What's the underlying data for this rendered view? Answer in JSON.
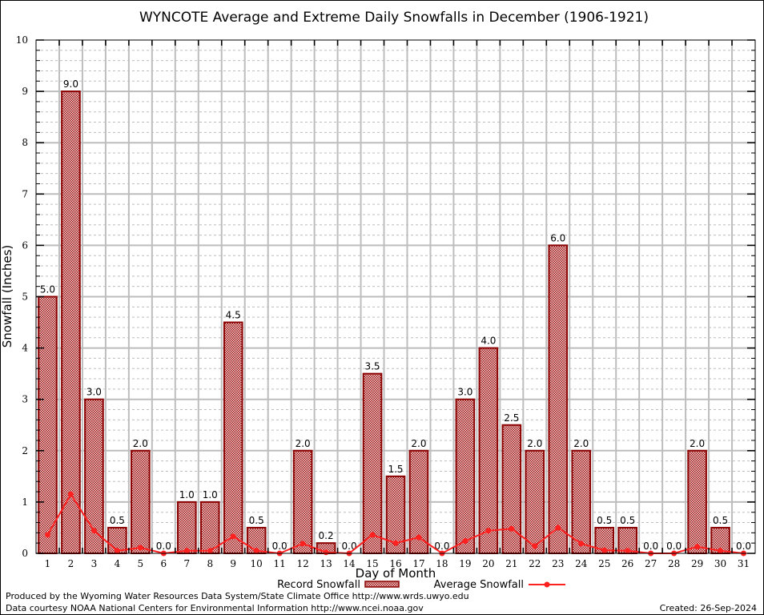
{
  "chart_data": {
    "type": "bar",
    "title": "WYNCOTE Average and Extreme Daily Snowfalls in December (1906-1921)",
    "xlabel": "Day of Month",
    "ylabel": "Snowfall (Inches)",
    "ylim": [
      0,
      10
    ],
    "yticks": [
      "0",
      "1",
      "2",
      "3",
      "4",
      "5",
      "6",
      "7",
      "8",
      "9",
      "10"
    ],
    "grid": true,
    "categories": [
      "1",
      "2",
      "3",
      "4",
      "5",
      "6",
      "7",
      "8",
      "9",
      "10",
      "11",
      "12",
      "13",
      "14",
      "15",
      "16",
      "17",
      "18",
      "19",
      "20",
      "21",
      "22",
      "23",
      "24",
      "25",
      "26",
      "27",
      "28",
      "29",
      "30",
      "31"
    ],
    "series": [
      {
        "name": "Record Snowfall",
        "kind": "bar",
        "color": "#8b0000",
        "values": [
          5.0,
          9.0,
          3.0,
          0.5,
          2.0,
          0.0,
          1.0,
          1.0,
          4.5,
          0.5,
          0.0,
          2.0,
          0.2,
          0.0,
          3.5,
          1.5,
          2.0,
          0.0,
          3.0,
          4.0,
          2.5,
          2.0,
          6.0,
          2.0,
          0.5,
          0.5,
          0.0,
          0.0,
          2.0,
          0.5,
          0.0
        ],
        "labels": [
          "5.0",
          "9.0",
          "3.0",
          "0.5",
          "2.0",
          "0.0",
          "1.0",
          "1.0",
          "4.5",
          "0.5",
          "0.0",
          "2.0",
          "0.2",
          "0.0",
          "3.5",
          "1.5",
          "2.0",
          "0.0",
          "3.0",
          "4.0",
          "2.5",
          "2.0",
          "6.0",
          "2.0",
          "0.5",
          "0.5",
          "0.0",
          "0.0",
          "2.0",
          "0.5",
          "0.0"
        ]
      },
      {
        "name": "Average Snowfall",
        "kind": "line",
        "color": "#ff2020",
        "values": [
          0.36,
          1.15,
          0.44,
          0.05,
          0.11,
          0.0,
          0.05,
          0.05,
          0.33,
          0.05,
          0.0,
          0.19,
          0.02,
          0.0,
          0.36,
          0.2,
          0.31,
          0.0,
          0.24,
          0.44,
          0.48,
          0.14,
          0.5,
          0.19,
          0.06,
          0.05,
          0.0,
          0.0,
          0.13,
          0.05,
          0.0
        ]
      }
    ],
    "legend": "bottom-center"
  },
  "footer": {
    "produced_by": "Produced by the Wyoming Water Resources Data System/State Climate Office http://www.wrds.uwyo.edu",
    "data_courtesy": "Data courtesy NOAA National Centers for Environmental Information http://www.ncei.noaa.gov",
    "created": "Created: 26-Sep-2024"
  }
}
